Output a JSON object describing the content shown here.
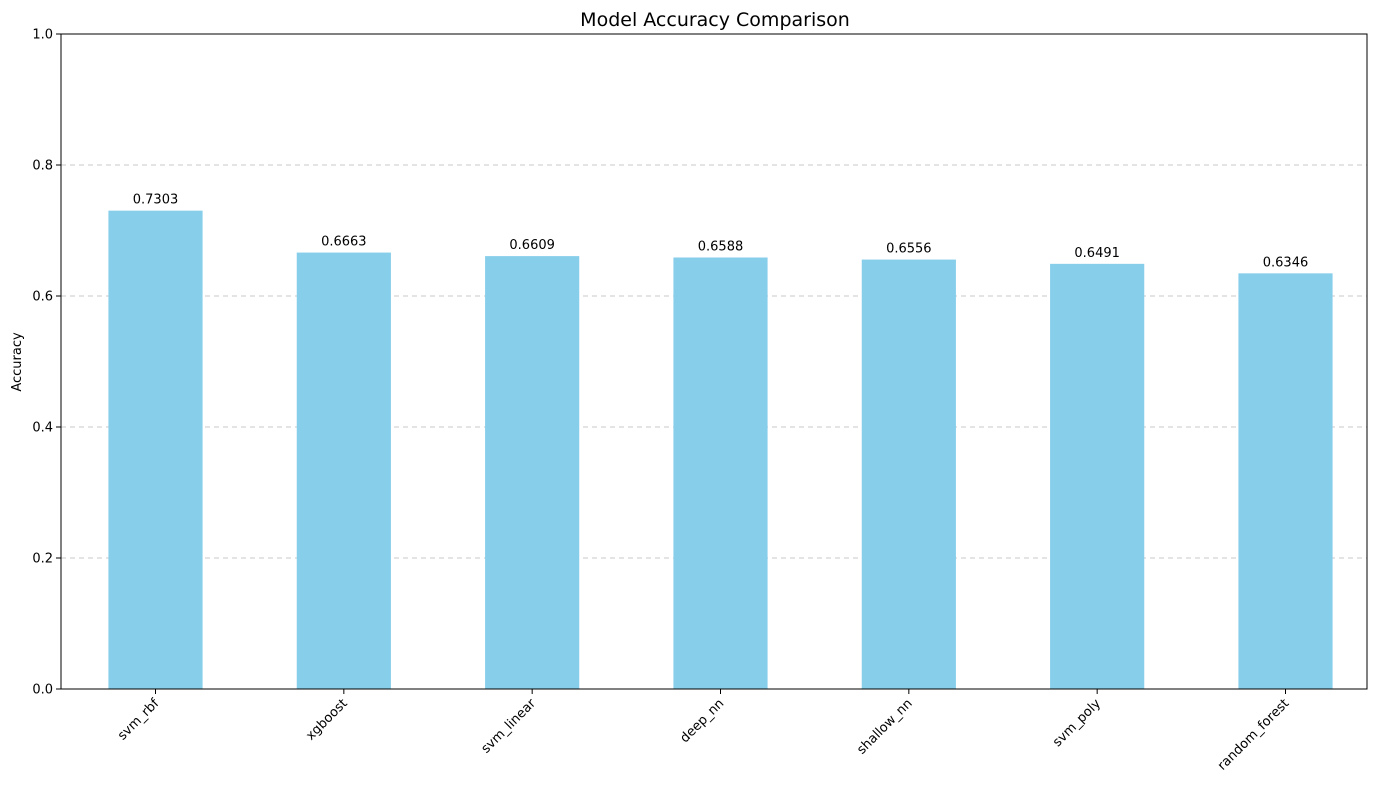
{
  "chart_data": {
    "type": "bar",
    "title": "Model Accuracy Comparison",
    "xlabel": "",
    "ylabel": "Accuracy",
    "categories": [
      "svm_rbf",
      "xgboost",
      "svm_linear",
      "deep_nn",
      "shallow_nn",
      "svm_poly",
      "random_forest"
    ],
    "values": [
      0.7303,
      0.6663,
      0.6609,
      0.6588,
      0.6556,
      0.6491,
      0.6346
    ],
    "data_labels": [
      "0.7303",
      "0.6663",
      "0.6609",
      "0.6588",
      "0.6556",
      "0.6491",
      "0.6346"
    ],
    "ylim": [
      0,
      1
    ],
    "yticks": [
      0.0,
      0.2,
      0.4,
      0.6,
      0.8,
      1.0
    ],
    "ytick_labels": [
      "0.0",
      "0.2",
      "0.4",
      "0.6",
      "0.8",
      "1.0"
    ],
    "grid": {
      "y": true,
      "x": false,
      "style": "dashed"
    },
    "bar_color": "#87CEEB",
    "legend": null
  }
}
